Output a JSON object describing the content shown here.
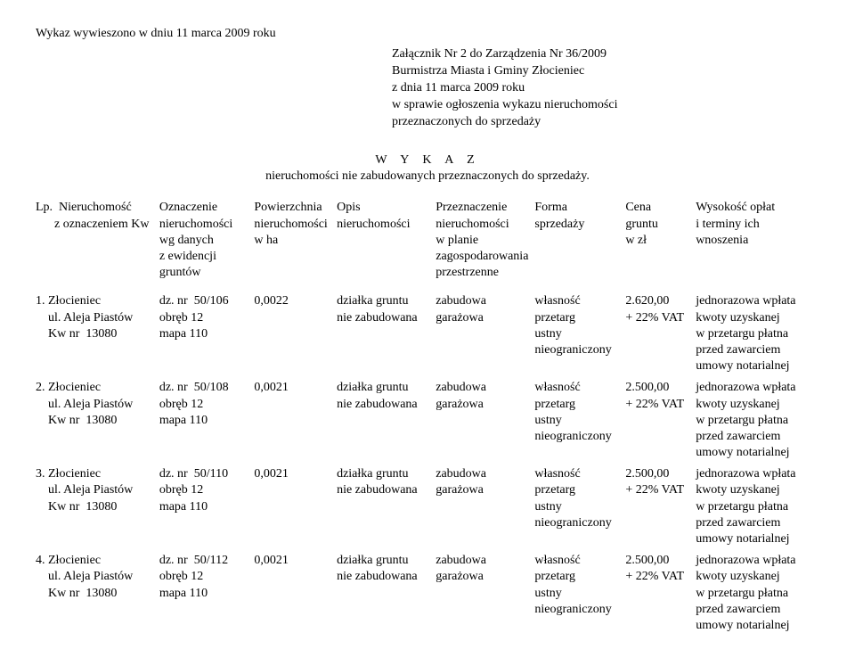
{
  "top_note": "Wykaz  wywieszono w dniu  11 marca  2009 roku",
  "attachment": {
    "l1": "Załącznik Nr  2 do Zarządzenia  Nr 36/2009",
    "l2": "Burmistrza Miasta i Gminy  Złocieniec",
    "l3": "z dnia  11 marca  2009 roku",
    "l4": "w sprawie ogłoszenia wykazu nieruchomości",
    "l5": "przeznaczonych do sprzedaży"
  },
  "title": "W  Y  K  A  Z",
  "subtitle": "nieruchomości  nie zabudowanych przeznaczonych  do  sprzedaży.",
  "header": {
    "c0": [
      "Lp.  Nieruchomość",
      "      z oznaczeniem Kw"
    ],
    "c1": [
      "Oznaczenie",
      "nieruchomości",
      "wg danych",
      "z ewidencji",
      "gruntów"
    ],
    "c2": [
      "Powierzchnia",
      "nieruchomości",
      "w ha"
    ],
    "c3": [
      "Opis",
      "nieruchomości"
    ],
    "c4": [
      "Przeznaczenie",
      "nieruchomości",
      "w planie",
      "zagospodarowania",
      "przestrzenne"
    ],
    "c5": [
      "Forma",
      "sprzedaży"
    ],
    "c6": [
      "Cena",
      "gruntu",
      "w zł"
    ],
    "c7": [
      "Wysokość opłat",
      "i terminy ich",
      "wnoszenia"
    ]
  },
  "rows": [
    {
      "c0": [
        "1. Złocieniec",
        "    ul. Aleja Piastów",
        "",
        "    Kw nr  13080"
      ],
      "c1": [
        "dz. nr  50/106",
        "obręb 12",
        "mapa 110"
      ],
      "c2": [
        "0,0022"
      ],
      "c3": [
        "działka gruntu",
        "nie zabudowana"
      ],
      "c4": [
        "zabudowa",
        "garażowa"
      ],
      "c5": [
        "własność",
        "przetarg",
        "ustny",
        "nieograniczony"
      ],
      "c6": [
        "2.620,00",
        "+ 22% VAT"
      ],
      "c7": [
        "jednorazowa wpłata",
        "kwoty uzyskanej",
        "w przetargu płatna",
        "przed zawarciem",
        "umowy notarialnej"
      ]
    },
    {
      "c0": [
        "2. Złocieniec",
        "    ul. Aleja Piastów",
        "",
        "    Kw nr  13080"
      ],
      "c1": [
        "dz. nr  50/108",
        "obręb 12",
        "mapa 110"
      ],
      "c2": [
        "0,0021"
      ],
      "c3": [
        "działka gruntu",
        "nie zabudowana"
      ],
      "c4": [
        "zabudowa",
        "garażowa"
      ],
      "c5": [
        "własność",
        "przetarg",
        "ustny",
        "nieograniczony"
      ],
      "c6": [
        "2.500,00",
        "+ 22% VAT"
      ],
      "c7": [
        "jednorazowa wpłata",
        "kwoty uzyskanej",
        "w przetargu płatna",
        "przed zawarciem",
        "umowy notarialnej"
      ]
    },
    {
      "c0": [
        "3. Złocieniec",
        "    ul. Aleja Piastów",
        "",
        "    Kw nr  13080"
      ],
      "c1": [
        "dz. nr  50/110",
        "obręb 12",
        "mapa 110"
      ],
      "c2": [
        "0,0021"
      ],
      "c3": [
        "działka gruntu",
        "nie zabudowana"
      ],
      "c4": [
        "zabudowa",
        "garażowa"
      ],
      "c5": [
        "własność",
        "przetarg",
        "ustny",
        "nieograniczony"
      ],
      "c6": [
        "2.500,00",
        "+ 22% VAT"
      ],
      "c7": [
        "jednorazowa wpłata",
        "kwoty uzyskanej",
        "w przetargu płatna",
        "przed zawarciem",
        "umowy notarialnej"
      ]
    },
    {
      "c0": [
        "4. Złocieniec",
        "    ul. Aleja Piastów",
        "",
        "    Kw nr  13080"
      ],
      "c1": [
        "dz. nr  50/112",
        "obręb 12",
        "mapa 110"
      ],
      "c2": [
        "0,0021"
      ],
      "c3": [
        "działka gruntu",
        "nie zabudowana"
      ],
      "c4": [
        "zabudowa",
        "garażowa"
      ],
      "c5": [
        "własność",
        "przetarg",
        "ustny",
        "nieograniczony"
      ],
      "c6": [
        "2.500,00",
        "+ 22% VAT"
      ],
      "c7": [
        "jednorazowa wpłata",
        "kwoty uzyskanej",
        "w przetargu płatna",
        "przed zawarciem",
        "umowy notarialnej"
      ]
    }
  ]
}
